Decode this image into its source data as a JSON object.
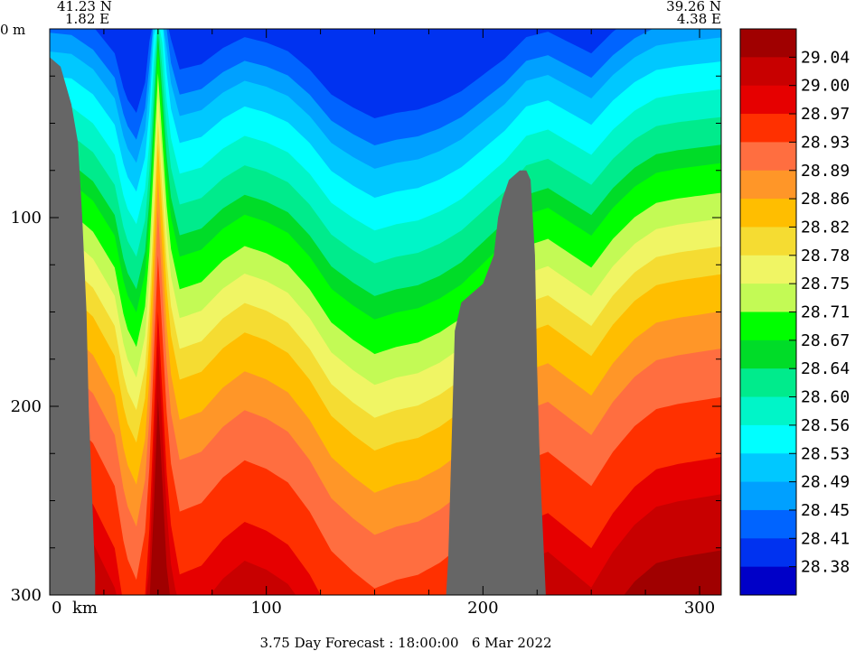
{
  "chart_data": {
    "type": "heatmap",
    "title": "",
    "xlabel": "",
    "ylabel": "",
    "x_unit_label": "km",
    "y_unit_label": "m",
    "corner_left": {
      "lat": "41.23 N",
      "lon": "1.82 E"
    },
    "corner_right": {
      "lat": "39.26 N",
      "lon": "4.38 E"
    },
    "footer": "3.75 Day Forecast : 18:00:00   6 Mar 2022",
    "xlim": [
      0,
      310
    ],
    "ylim": [
      0,
      300
    ],
    "x_ticks": [
      0,
      100,
      200,
      300
    ],
    "y_ticks": [
      0,
      100,
      200,
      300
    ],
    "colorbar": {
      "labels": [
        "29.04",
        "29.00",
        "28.97",
        "28.93",
        "28.89",
        "28.86",
        "28.82",
        "28.78",
        "28.75",
        "28.71",
        "28.67",
        "28.64",
        "28.60",
        "28.56",
        "28.53",
        "28.49",
        "28.45",
        "28.41",
        "28.38"
      ],
      "colors": [
        "#a00000",
        "#c80000",
        "#e60000",
        "#ff3000",
        "#ff6e40",
        "#ff9628",
        "#ffbe00",
        "#f5dc32",
        "#f0f564",
        "#c3fa55",
        "#00ff00",
        "#00dc28",
        "#00eb8c",
        "#00f5c8",
        "#00ffff",
        "#00c8ff",
        "#00a0ff",
        "#0064ff",
        "#0032f0",
        "#0000c8"
      ]
    },
    "bathymetry_depth_m": [
      [
        0,
        15
      ],
      [
        5,
        20
      ],
      [
        10,
        40
      ],
      [
        13,
        60
      ],
      [
        15,
        100
      ],
      [
        17,
        150
      ],
      [
        18,
        200
      ],
      [
        19,
        230
      ],
      [
        20,
        260
      ],
      [
        21,
        290
      ],
      [
        21,
        300
      ],
      [
        183,
        300
      ],
      [
        184,
        280
      ],
      [
        185,
        240
      ],
      [
        186,
        200
      ],
      [
        187,
        160
      ],
      [
        190,
        145
      ],
      [
        195,
        140
      ],
      [
        200,
        135
      ],
      [
        205,
        120
      ],
      [
        207,
        100
      ],
      [
        209,
        90
      ],
      [
        212,
        80
      ],
      [
        217,
        75
      ],
      [
        220,
        75
      ],
      [
        222,
        80
      ],
      [
        224,
        120
      ],
      [
        225,
        180
      ],
      [
        226,
        220
      ],
      [
        227,
        250
      ],
      [
        228,
        275
      ],
      [
        229,
        300
      ]
    ],
    "surface_pattern_x": [
      0,
      10,
      20,
      30,
      35,
      40,
      45,
      50,
      55,
      60,
      70,
      80,
      90,
      100,
      110,
      120,
      130,
      140,
      150,
      160,
      170,
      180,
      190,
      200,
      210,
      220,
      230,
      240,
      250,
      260,
      270,
      280,
      290,
      300,
      310
    ],
    "surface_pattern_dy": [
      0,
      2,
      15,
      40,
      80,
      95,
      60,
      -95,
      20,
      55,
      50,
      35,
      25,
      30,
      38,
      55,
      78,
      90,
      100,
      95,
      92,
      85,
      75,
      60,
      45,
      25,
      20,
      30,
      40,
      20,
      5,
      -5,
      -8,
      -10,
      -12
    ],
    "contour_bases_m": [
      300,
      288,
      258,
      238,
      206,
      180,
      160,
      140,
      125,
      110,
      96,
      80,
      70,
      55,
      40,
      25,
      12,
      2,
      -10
    ]
  }
}
